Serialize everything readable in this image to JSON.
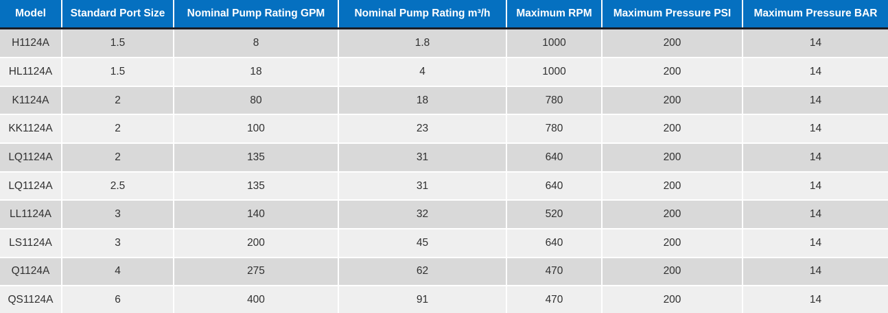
{
  "table": {
    "columns": [
      {
        "label": "Model"
      },
      {
        "label": "Standard Port Size"
      },
      {
        "label": "Nominal Pump Rating GPM"
      },
      {
        "label": "Nominal Pump Rating m³/h"
      },
      {
        "label": "Maximum RPM"
      },
      {
        "label": "Maximum Pressure PSI"
      },
      {
        "label": "Maximum Pressure BAR"
      }
    ],
    "rows": [
      {
        "model": "H1124A",
        "port_size": "1.5",
        "rating_gpm": "8",
        "rating_m3h": "1.8",
        "max_rpm": "1000",
        "max_psi": "200",
        "max_bar": "14"
      },
      {
        "model": "HL1124A",
        "port_size": "1.5",
        "rating_gpm": "18",
        "rating_m3h": "4",
        "max_rpm": "1000",
        "max_psi": "200",
        "max_bar": "14"
      },
      {
        "model": "K1124A",
        "port_size": "2",
        "rating_gpm": "80",
        "rating_m3h": "18",
        "max_rpm": "780",
        "max_psi": "200",
        "max_bar": "14"
      },
      {
        "model": "KK1124A",
        "port_size": "2",
        "rating_gpm": "100",
        "rating_m3h": "23",
        "max_rpm": "780",
        "max_psi": "200",
        "max_bar": "14"
      },
      {
        "model": "LQ1124A",
        "port_size": "2",
        "rating_gpm": "135",
        "rating_m3h": "31",
        "max_rpm": "640",
        "max_psi": "200",
        "max_bar": "14"
      },
      {
        "model": "LQ1124A",
        "port_size": "2.5",
        "rating_gpm": "135",
        "rating_m3h": "31",
        "max_rpm": "640",
        "max_psi": "200",
        "max_bar": "14"
      },
      {
        "model": "LL1124A",
        "port_size": "3",
        "rating_gpm": "140",
        "rating_m3h": "32",
        "max_rpm": "520",
        "max_psi": "200",
        "max_bar": "14"
      },
      {
        "model": "LS1124A",
        "port_size": "3",
        "rating_gpm": "200",
        "rating_m3h": "45",
        "max_rpm": "640",
        "max_psi": "200",
        "max_bar": "14"
      },
      {
        "model": "Q1124A",
        "port_size": "4",
        "rating_gpm": "275",
        "rating_m3h": "62",
        "max_rpm": "470",
        "max_psi": "200",
        "max_bar": "14"
      },
      {
        "model": "QS1124A",
        "port_size": "6",
        "rating_gpm": "400",
        "rating_m3h": "91",
        "max_rpm": "470",
        "max_psi": "200",
        "max_bar": "14"
      }
    ],
    "field_order": [
      "model",
      "port_size",
      "rating_gpm",
      "rating_m3h",
      "max_rpm",
      "max_psi",
      "max_bar"
    ]
  },
  "colors": {
    "header_bg": "#0570c0",
    "header_text": "#ffffff",
    "header_bottom_border": "#1b1b22",
    "row_odd_bg": "#d9d9d9",
    "row_even_bg": "#efefef",
    "grid_divider": "#ffffff",
    "cell_text": "#303030"
  }
}
